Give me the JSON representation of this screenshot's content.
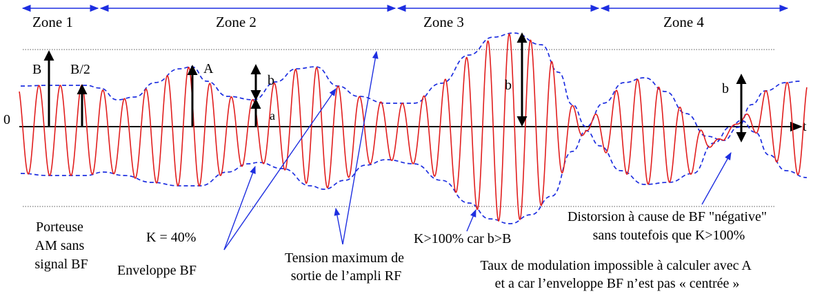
{
  "zones": {
    "zone1": "Zone 1",
    "zone2": "Zone 2",
    "zone3": "Zone 3",
    "zone4": "Zone 4"
  },
  "axis": {
    "zero": "0",
    "t": "t"
  },
  "markers": {
    "B": "B",
    "B_half": "B/2",
    "A": "A",
    "b_zone2": "b",
    "a_zone2": "a",
    "b_zone3": "b",
    "b_zone4": "b"
  },
  "annotations": {
    "porteuse": [
      "Porteuse",
      "AM sans",
      "signal BF"
    ],
    "k40": "K = 40%",
    "enveloppe": "Enveloppe BF",
    "tension": [
      "Tension maximum de",
      "sortie de l’ampli RF"
    ],
    "k100": "K>100% car b>B",
    "distorsion": [
      "Distorsion à cause de BF \"négative\"",
      "sans toutefois que K>100%"
    ],
    "taux": [
      "Taux de modulation impossible à calculer avec A",
      "et a car l’enveloppe BF n’est pas « centrée »"
    ]
  },
  "colors": {
    "carrier": "#e11d1d",
    "envelope": "#1d2ee0",
    "arrows": "#1d2ee0",
    "axis": "#000000"
  }
}
